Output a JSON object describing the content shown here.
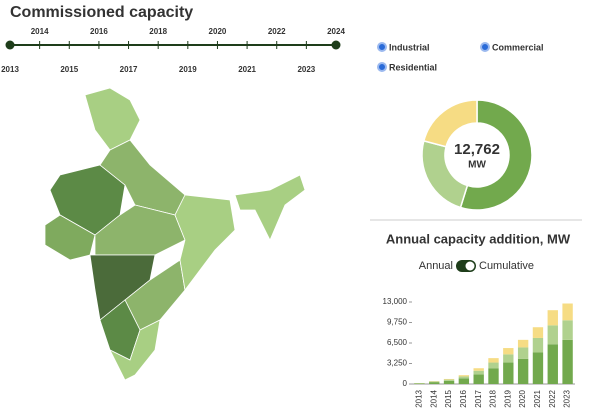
{
  "header": {
    "title": "Commissioned capacity"
  },
  "timeline": {
    "years": [
      2013,
      2014,
      2015,
      2016,
      2017,
      2018,
      2019,
      2020,
      2021,
      2022,
      2023,
      2024
    ],
    "color": "#1e3d1a"
  },
  "legend": {
    "items": [
      {
        "label": "Industrial",
        "color": "#6fa84a"
      },
      {
        "label": "Commercial",
        "color": "#a4cc7c"
      },
      {
        "label": "Residential",
        "color": "#f1d57a"
      }
    ]
  },
  "toggle": {
    "options": [
      "Annual",
      "Cumulative"
    ],
    "selected": 1
  },
  "chart_data": [
    {
      "type": "pie",
      "donut": true,
      "categories": [
        "Industrial",
        "Commercial",
        "Residential"
      ],
      "values": [
        7000,
        3100,
        2662
      ],
      "colors": [
        "#72a94d",
        "#b0d18e",
        "#f6dc84"
      ],
      "total": {
        "value": 12762,
        "label": "12,762"
      },
      "unit": "MW"
    },
    {
      "type": "bar",
      "stacked": true,
      "title": "Annual capacity addition, MW",
      "categories": [
        "2013",
        "2014",
        "2015",
        "2016",
        "2017",
        "2018",
        "2019",
        "2020",
        "2021",
        "2022",
        "2023"
      ],
      "series": [
        {
          "name": "Industrial",
          "color": "#72a94d",
          "values": [
            100,
            300,
            500,
            900,
            1500,
            2500,
            3400,
            4000,
            5000,
            6300,
            7000
          ]
        },
        {
          "name": "Commercial",
          "color": "#b0d18e",
          "values": [
            30,
            100,
            200,
            300,
            600,
            900,
            1300,
            1800,
            2300,
            3000,
            3100
          ]
        },
        {
          "name": "Residential",
          "color": "#f6dc84",
          "values": [
            20,
            50,
            100,
            200,
            400,
            700,
            1000,
            1200,
            1700,
            2400,
            2662
          ]
        }
      ],
      "ylim": [
        0,
        13000
      ],
      "yticks": [
        0,
        {
          "value": 3250,
          "label": "3,250"
        },
        {
          "value": 6500,
          "label": "6,500"
        },
        {
          "value": 9750,
          "label": "9,750"
        },
        {
          "value": 13000,
          "label": "13,000"
        }
      ]
    }
  ]
}
